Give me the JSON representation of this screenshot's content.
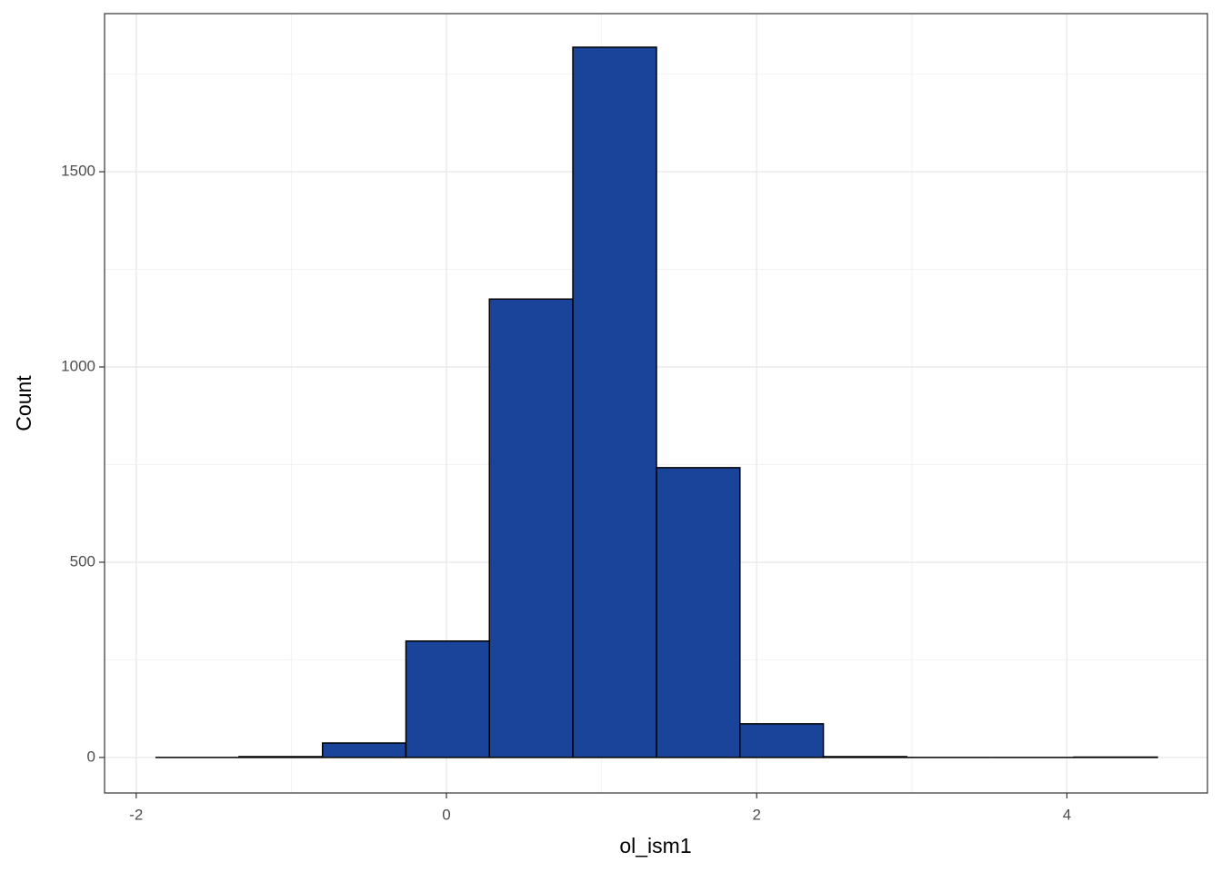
{
  "chart_data": {
    "type": "histogram",
    "x_label": "ol_ism1",
    "y_label": "Count",
    "bins": [
      -1.876,
      -1.338,
      -0.799,
      -0.261,
      0.277,
      0.815,
      1.354,
      1.892,
      2.43,
      2.968,
      3.507,
      4.045,
      4.583
    ],
    "values": [
      0,
      2,
      37,
      298,
      1174,
      1819,
      742,
      86,
      2,
      0,
      0,
      1
    ],
    "color": "#1a4499",
    "xlim": [
      -2.204,
      4.906
    ],
    "ylim": [
      -91,
      1905
    ],
    "xticks": [
      -2,
      0,
      2,
      4
    ],
    "yticks": [
      0,
      500,
      1000,
      1500
    ],
    "minor_xticks": [
      -1,
      1,
      3
    ],
    "minor_yticks": [
      250,
      750,
      1250,
      1750
    ],
    "grid": true
  }
}
